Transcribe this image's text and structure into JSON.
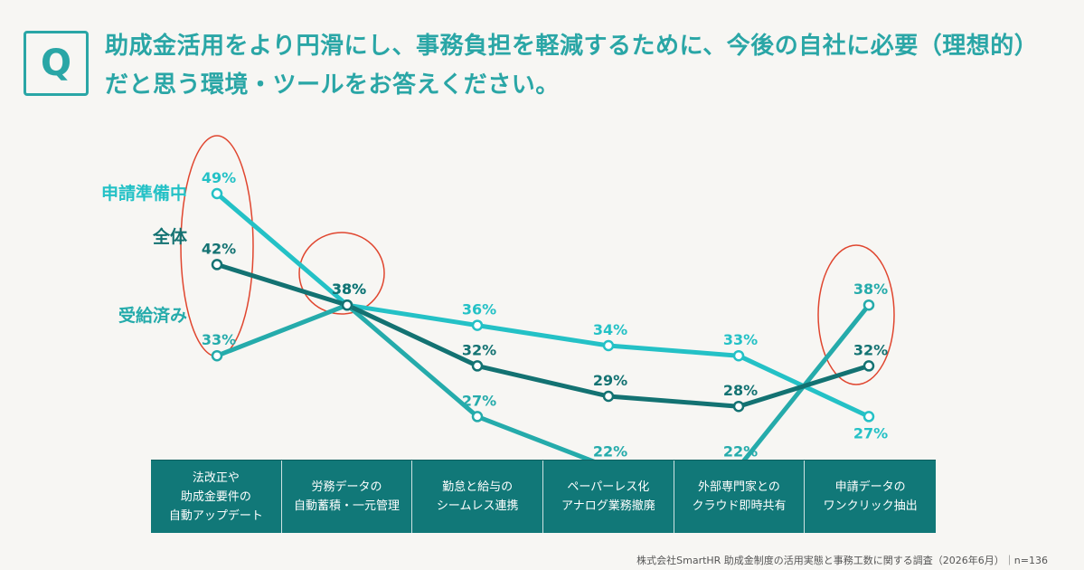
{
  "header": {
    "q_mark": "Q",
    "question": "助成金活用をより円滑にし、事務負担を軽減するために、今後の自社に必要（理想的）だと思う環境・ツールをお答えください。"
  },
  "chart_data": {
    "type": "line",
    "categories": [
      "法改正や\n助成金要件の\n自動アップデート",
      "労務データの\n自動蓄積・一元管理",
      "勤怠と給与の\nシームレス連携",
      "ペーパーレス化\nアナログ業務撤廃",
      "外部専門家との\nクラウド即時共有",
      "申請データの\nワンクリック抽出"
    ],
    "series": [
      {
        "name": "申請準備中",
        "values": [
          49,
          38,
          36,
          34,
          33,
          27
        ],
        "labels": [
          "49%",
          "38%",
          "36%",
          "34%",
          "33%",
          "27%"
        ],
        "color": "#24c1c6"
      },
      {
        "name": "受給済み",
        "values": [
          33,
          38,
          27,
          22,
          22,
          38
        ],
        "labels": [
          "33%",
          "38%",
          "27%",
          "22%",
          "22%",
          "38%"
        ],
        "color": "#25abab"
      },
      {
        "name": "全体",
        "values": [
          42,
          38,
          32,
          29,
          28,
          32
        ],
        "labels": [
          "42%",
          "38%",
          "32%",
          "29%",
          "28%",
          "32%"
        ],
        "color": "#137272"
      }
    ],
    "highlight_color": "#e0462f",
    "unit": "%"
  },
  "source": "株式会社SmartHR 助成金制度の活用実態と事務工数に関する調査（2026年6月）｜n=136"
}
